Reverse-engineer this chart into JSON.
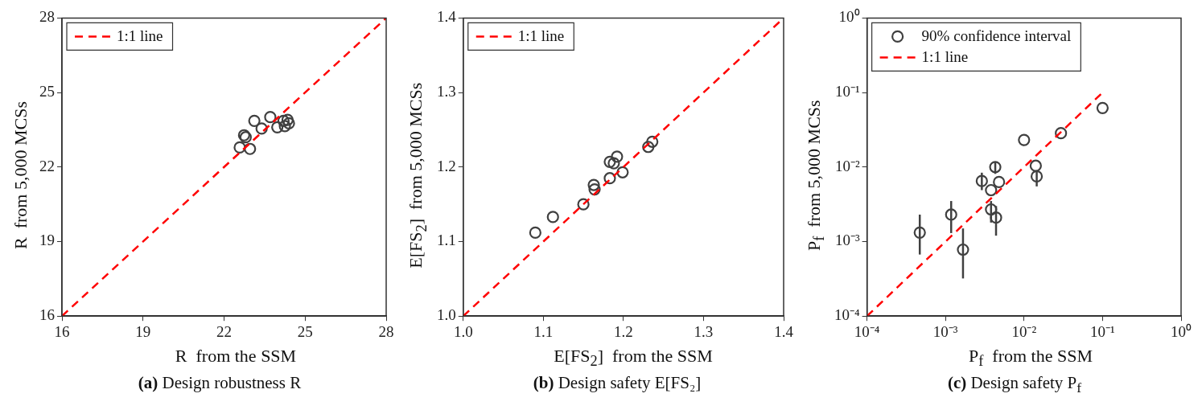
{
  "chart_data": [
    {
      "type": "scatter",
      "title": "(a) Design robustness R",
      "xlabel": "R  from the SSM",
      "ylabel": "R  from 5,000 MCSs",
      "xlim": [
        16,
        28
      ],
      "ylim": [
        16,
        28
      ],
      "xticks": [
        16,
        19,
        22,
        25,
        28
      ],
      "yticks": [
        16,
        19,
        22,
        25,
        28
      ],
      "grid": false,
      "legend": "top left",
      "series": [
        {
          "marker": "circle",
          "color": "#404040",
          "x": [
            22.74,
            22.8,
            22.58,
            22.96,
            23.12,
            23.39,
            23.71,
            23.97,
            24.2,
            24.35,
            24.25,
            24.4
          ],
          "values": [
            23.28,
            23.2,
            22.79,
            22.73,
            23.86,
            23.55,
            24.01,
            23.6,
            23.86,
            23.9,
            23.65,
            23.76
          ]
        },
        {
          "type": "line",
          "name": "1:1 line",
          "marker": "none",
          "color": "#ff0000",
          "line_style": "dashed",
          "x": [
            16,
            28
          ],
          "values": [
            16,
            28
          ]
        }
      ]
    },
    {
      "type": "scatter",
      "title": "(b) Design safety E[FS₂]",
      "xlabel": "E[FS$_{2}$]  from the SSM",
      "ylabel": "E[FS$_{2}$]  from 5,000 MCSs",
      "xlim": [
        1,
        1.4
      ],
      "ylim": [
        1,
        1.4
      ],
      "xticks": [
        {
          "value": 1,
          "label": "1.0"
        },
        1.1,
        1.2,
        1.3,
        1.4
      ],
      "yticks": [
        {
          "value": 1,
          "label": "1.0"
        },
        1.1,
        1.2,
        1.3,
        1.4
      ],
      "grid": false,
      "legend": "top left",
      "series": [
        {
          "marker": "circle",
          "color": "#404040",
          "x": [
            1.09,
            1.112,
            1.15,
            1.163,
            1.164,
            1.183,
            1.183,
            1.192,
            1.188,
            1.199,
            1.231,
            1.236
          ],
          "values": [
            1.112,
            1.133,
            1.15,
            1.176,
            1.17,
            1.185,
            1.207,
            1.214,
            1.205,
            1.193,
            1.227,
            1.234
          ]
        },
        {
          "type": "line",
          "name": "1:1 line",
          "marker": "none",
          "color": "#ff0000",
          "line_style": "dashed",
          "x": [
            1,
            1.4
          ],
          "values": [
            1,
            1.4
          ]
        }
      ]
    },
    {
      "type": "scatter",
      "title": "(c) Design safety P$_{f}$",
      "xlabel": "P$_{f}$  from the SSM",
      "ylabel": "P$_{f}$  from 5,000 MCSs",
      "log": "xy",
      "xlim": [
        0.0001,
        1
      ],
      "ylim": [
        0.0001,
        1
      ],
      "xticks": [
        {
          "value": 0.0001,
          "label": "10⁻⁴"
        },
        {
          "value": 0.001,
          "label": "10⁻³"
        },
        {
          "value": 0.01,
          "label": "10⁻²"
        },
        {
          "value": 0.1,
          "label": "10⁻¹"
        },
        {
          "value": 1,
          "label": "10⁰"
        }
      ],
      "yticks": [
        {
          "value": 0.0001,
          "label": "10⁻⁴"
        },
        {
          "value": 0.001,
          "label": "10⁻³"
        },
        {
          "value": 0.01,
          "label": "10⁻²"
        },
        {
          "value": 0.1,
          "label": "10⁻¹"
        },
        {
          "value": 1,
          "label": "10⁰"
        }
      ],
      "grid": false,
      "legend": "top left",
      "series": [
        {
          "name": "90% confidence interval",
          "marker": "circle",
          "color": "#404040",
          "x": [
            0.00047,
            0.00118,
            0.00167,
            0.0029,
            0.0038,
            0.0038,
            0.0043,
            0.0048,
            0.0044,
            0.01,
            0.0141,
            0.0145,
            0.0295,
            0.1
          ],
          "values": [
            0.00132,
            0.0023,
            0.00078,
            0.0065,
            0.0049,
            0.0027,
            0.01,
            0.0063,
            0.0021,
            0.0231,
            0.0104,
            0.0075,
            0.0285,
            0.062
          ],
          "errors": [
            [
              0.00067,
              0.0023
            ],
            [
              0.0013,
              0.0035
            ],
            [
              0.00032,
              0.0015
            ],
            [
              0.0049,
              0.0084
            ],
            null,
            [
              0.0018,
              0.0035
            ],
            [
              0.0081,
              0.0117
            ],
            null,
            [
              0.0012,
              0.003
            ],
            null,
            null,
            [
              0.0055,
              0.0088
            ],
            null,
            null
          ]
        },
        {
          "type": "line",
          "name": "1:1 line",
          "marker": "none",
          "color": "#ff0000",
          "line_style": "dashed",
          "x": [
            0.0001,
            0.1
          ],
          "values": [
            0.0001,
            0.1
          ]
        }
      ]
    }
  ]
}
